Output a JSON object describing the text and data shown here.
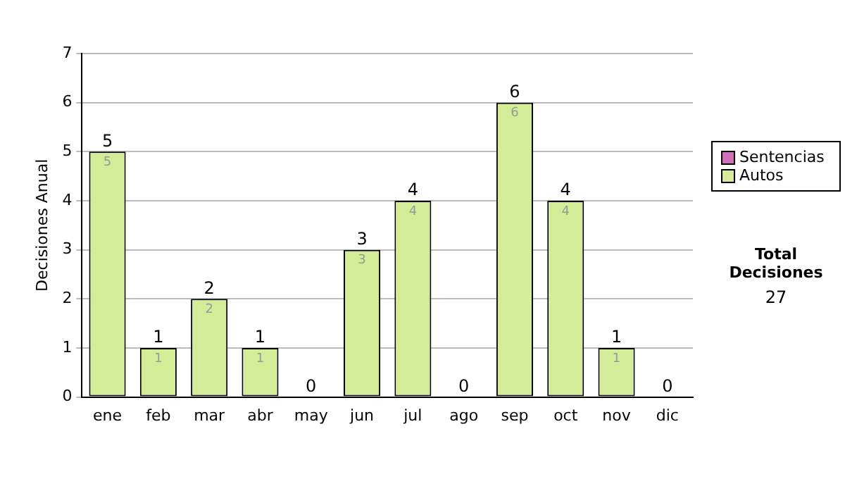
{
  "chart_data": {
    "type": "bar",
    "ylabel": "Decisiones Anual",
    "categories": [
      "ene",
      "feb",
      "mar",
      "abr",
      "may",
      "jun",
      "jul",
      "ago",
      "sep",
      "oct",
      "nov",
      "dic"
    ],
    "series": [
      {
        "name": "Sentencias",
        "color": "#d070b8",
        "values": [
          0,
          0,
          0,
          0,
          0,
          0,
          0,
          0,
          0,
          0,
          0,
          0
        ]
      },
      {
        "name": "Autos",
        "color": "#d4ec98",
        "values": [
          5,
          1,
          2,
          1,
          0,
          3,
          4,
          0,
          6,
          4,
          1,
          0
        ],
        "value_labels": [
          "5",
          "1",
          "2",
          "1",
          null,
          "3",
          "4",
          null,
          "6",
          "4",
          "1",
          null
        ]
      }
    ],
    "stacked": true,
    "totals": [
      "5",
      "1",
      "2",
      "1",
      "0",
      "3",
      "4",
      "0",
      "6",
      "4",
      "1",
      "0"
    ],
    "ylim": [
      0,
      7
    ],
    "yticks": [
      0,
      1,
      2,
      3,
      4,
      5,
      6,
      7
    ],
    "grid": "y",
    "legend": "right",
    "annotations": [
      "Total Decisiones",
      "27"
    ]
  }
}
